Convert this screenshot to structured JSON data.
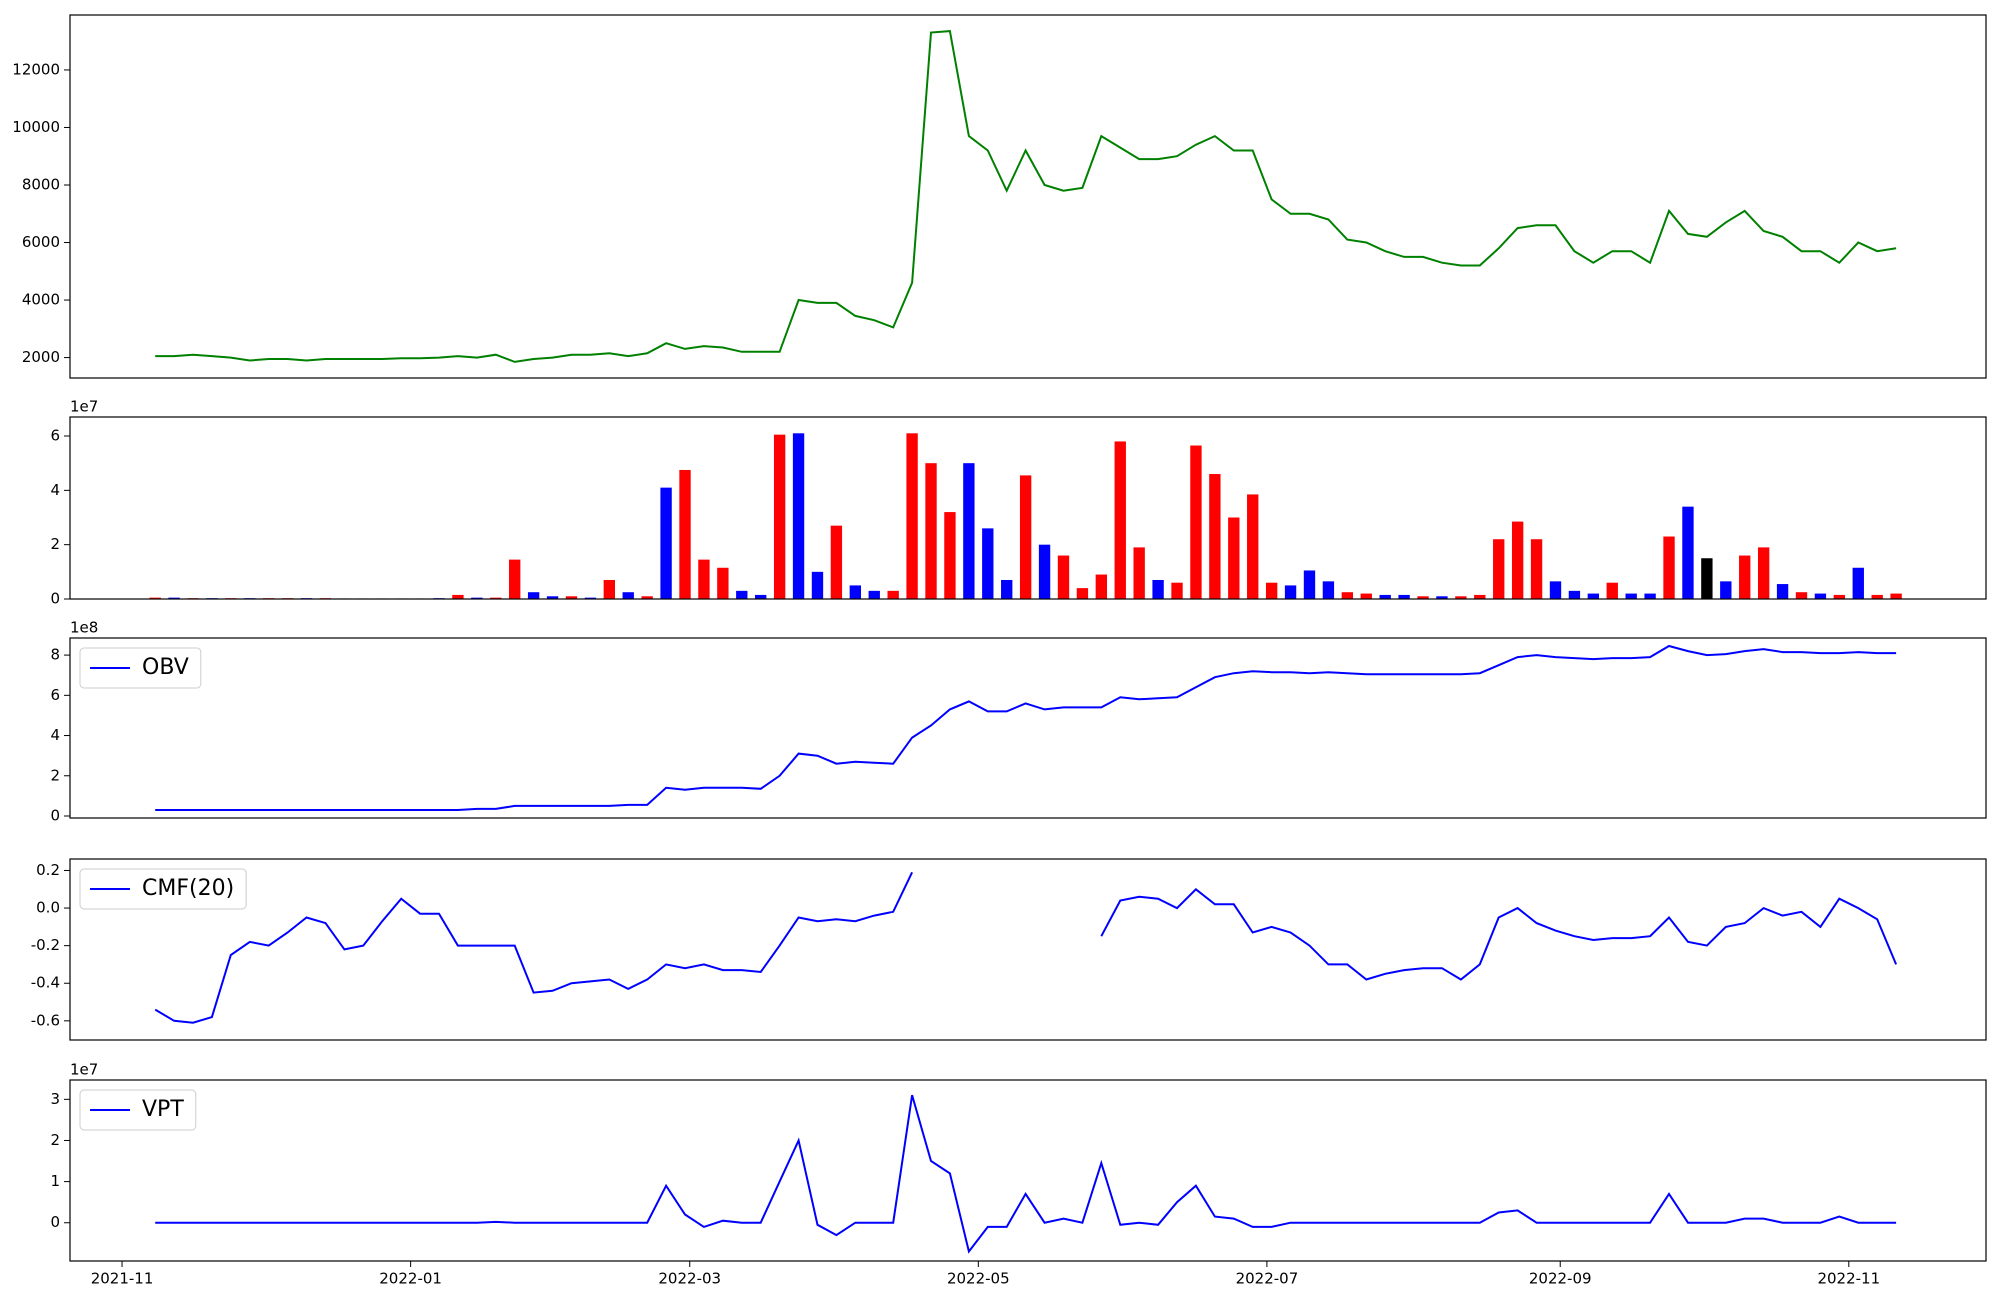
{
  "chart_data": [
    {
      "type": "line",
      "color": "green",
      "x": [
        7,
        11,
        15,
        19,
        23,
        27,
        31,
        35,
        39,
        43,
        47,
        51,
        55,
        59,
        63,
        67,
        71,
        75,
        79,
        83,
        87,
        91,
        95,
        99,
        103,
        107,
        111,
        115,
        119,
        123,
        127,
        131,
        135,
        139,
        143,
        147,
        151,
        155,
        159,
        163,
        167,
        171,
        175,
        179,
        183,
        187,
        191,
        195,
        199,
        203,
        207,
        211,
        215,
        219,
        223,
        227,
        231,
        235,
        239,
        243,
        247,
        251,
        255,
        259,
        263,
        267,
        271,
        275,
        279,
        283,
        287,
        291,
        295,
        299,
        303,
        307,
        311,
        315,
        319,
        323,
        327,
        331,
        335,
        339,
        343,
        347,
        351,
        355,
        359,
        363,
        367,
        371,
        375
      ],
      "values": [
        2050,
        2050,
        2100,
        2050,
        2000,
        1900,
        1950,
        1950,
        1900,
        1950,
        1950,
        1950,
        1950,
        1980,
        1980,
        2000,
        2050,
        2000,
        2100,
        1850,
        1950,
        2000,
        2100,
        2100,
        2150,
        2050,
        2150,
        2500,
        2300,
        2400,
        2350,
        2200,
        2200,
        2200,
        4000,
        3900,
        3900,
        3450,
        3300,
        3050,
        4600,
        13300,
        13350,
        9700,
        9200,
        7800,
        9200,
        8000,
        7800,
        7900,
        9700,
        9300,
        8900,
        8900,
        9000,
        9400,
        9700,
        9200,
        9200,
        7500,
        7000,
        7000,
        6800,
        6100,
        6000,
        5700,
        5500,
        5500,
        5300,
        5200,
        5200,
        5800,
        6500,
        6600,
        6600,
        5700,
        5300,
        5700,
        5700,
        5300,
        7100,
        6300,
        6200,
        6700,
        7100,
        6400,
        6200,
        5700,
        5700,
        5300,
        6000,
        5700,
        5800
      ],
      "xlim": [
        -11,
        394
      ],
      "ylim": [
        1290,
        13910
      ],
      "yticks": [
        2000,
        4000,
        6000,
        8000,
        10000,
        12000
      ]
    },
    {
      "type": "bar",
      "y_offset_label": "1e7",
      "x": [
        7,
        11,
        15,
        19,
        23,
        27,
        31,
        35,
        39,
        43,
        47,
        51,
        55,
        59,
        63,
        67,
        71,
        75,
        79,
        83,
        87,
        91,
        95,
        99,
        103,
        107,
        111,
        115,
        119,
        123,
        127,
        131,
        135,
        139,
        143,
        147,
        151,
        155,
        159,
        163,
        167,
        171,
        175,
        179,
        183,
        187,
        191,
        195,
        199,
        203,
        207,
        211,
        215,
        219,
        223,
        227,
        231,
        235,
        239,
        243,
        247,
        251,
        255,
        259,
        263,
        267,
        271,
        275,
        279,
        283,
        287,
        291,
        295,
        299,
        303,
        307,
        311,
        315,
        319,
        323,
        327,
        331,
        335,
        339,
        343,
        347,
        351,
        355,
        359,
        363,
        367,
        371,
        375
      ],
      "values": [
        500000.0,
        500000.0,
        300000.0,
        300000.0,
        300000.0,
        300000.0,
        300000.0,
        300000.0,
        300000.0,
        300000.0,
        200000.0,
        200000.0,
        200000.0,
        200000.0,
        200000.0,
        300000.0,
        1500000.0,
        500000.0,
        500000.0,
        14500000.0,
        2500000.0,
        1000000.0,
        1000000.0,
        500000.0,
        7000000.0,
        2500000.0,
        1000000.0,
        41000000.0,
        47500000.0,
        14500000.0,
        11500000.0,
        3000000.0,
        1500000.0,
        60500000.0,
        61000000.0,
        10000000.0,
        27000000.0,
        5000000.0,
        3000000.0,
        3000000.0,
        61000000.0,
        50000000.0,
        32000000.0,
        50000000.0,
        26000000.0,
        7000000.0,
        45500000.0,
        20000000.0,
        16000000.0,
        4000000.0,
        9000000.0,
        58000000.0,
        19000000.0,
        7000000.0,
        6000000.0,
        56500000.0,
        46000000.0,
        30000000.0,
        38500000.0,
        6000000.0,
        5000000.0,
        10500000.0,
        6500000.0,
        2500000.0,
        2000000.0,
        1500000.0,
        1500000.0,
        1000000.0,
        1000000.0,
        1000000.0,
        1500000.0,
        22000000.0,
        28500000.0,
        22000000.0,
        6500000.0,
        3000000.0,
        2000000.0,
        6000000.0,
        2000000.0,
        2000000.0,
        23000000.0,
        34000000.0,
        15000000.0,
        6500000.0,
        16000000.0,
        19000000.0,
        5500000.0,
        2500000.0,
        2000000.0,
        1500000.0,
        11500000.0,
        1500000.0,
        2000000.0
      ],
      "bar_colors": [
        "red",
        "blue",
        "red",
        "blue",
        "red",
        "blue",
        "red",
        "red",
        "blue",
        "red",
        "blue",
        "blue",
        "red",
        "blue",
        "red",
        "blue",
        "red",
        "blue",
        "red",
        "red",
        "blue",
        "blue",
        "red",
        "blue",
        "red",
        "blue",
        "red",
        "blue",
        "red",
        "red",
        "red",
        "blue",
        "blue",
        "red",
        "blue",
        "blue",
        "red",
        "blue",
        "blue",
        "red",
        "red",
        "red",
        "red",
        "blue",
        "blue",
        "blue",
        "red",
        "blue",
        "red",
        "red",
        "red",
        "red",
        "red",
        "blue",
        "red",
        "red",
        "red",
        "red",
        "red",
        "red",
        "blue",
        "blue",
        "blue",
        "red",
        "red",
        "blue",
        "blue",
        "red",
        "blue",
        "red",
        "red",
        "red",
        "red",
        "red",
        "blue",
        "blue",
        "blue",
        "red",
        "blue",
        "blue",
        "red",
        "blue",
        "black",
        "blue",
        "red",
        "red",
        "blue",
        "red",
        "blue",
        "red",
        "blue",
        "red",
        "red"
      ],
      "xlim": [
        -11,
        394
      ],
      "ylim": [
        0,
        67000000.0
      ],
      "yticks": [
        0,
        {
          "value": 20000000.0,
          "label": "2"
        },
        {
          "value": 40000000.0,
          "label": "4"
        },
        {
          "value": 60000000.0,
          "label": "6"
        }
      ]
    },
    {
      "type": "line",
      "y_offset_label": "1e8",
      "legend": "upper left",
      "x": [
        7,
        11,
        15,
        19,
        23,
        27,
        31,
        35,
        39,
        43,
        47,
        51,
        55,
        59,
        63,
        67,
        71,
        75,
        79,
        83,
        87,
        91,
        95,
        99,
        103,
        107,
        111,
        115,
        119,
        123,
        127,
        131,
        135,
        139,
        143,
        147,
        151,
        155,
        159,
        163,
        167,
        171,
        175,
        179,
        183,
        187,
        191,
        195,
        199,
        203,
        207,
        211,
        215,
        219,
        223,
        227,
        231,
        235,
        239,
        243,
        247,
        251,
        255,
        259,
        263,
        267,
        271,
        275,
        279,
        283,
        287,
        291,
        295,
        299,
        303,
        307,
        311,
        315,
        319,
        323,
        327,
        331,
        335,
        339,
        343,
        347,
        351,
        355,
        359,
        363,
        367,
        371,
        375
      ],
      "series": [
        {
          "name": "OBV",
          "color": "blue",
          "values": [
            30000000.0,
            30000000.0,
            30000000.0,
            30000000.0,
            30000000.0,
            30000000.0,
            30000000.0,
            30000000.0,
            30000000.0,
            30000000.0,
            30000000.0,
            30000000.0,
            30000000.0,
            30000000.0,
            30000000.0,
            30000000.0,
            30000000.0,
            35000000.0,
            35000000.0,
            50000000.0,
            50000000.0,
            50000000.0,
            50000000.0,
            50000000.0,
            50000000.0,
            55000000.0,
            55000000.0,
            140000000.0,
            130000000.0,
            140000000.0,
            140000000.0,
            140000000.0,
            135000000.0,
            200000000.0,
            310000000.0,
            300000000.0,
            260000000.0,
            270000000.0,
            265000000.0,
            260000000.0,
            390000000.0,
            450000000.0,
            530000000.0,
            570000000.0,
            520000000.0,
            520000000.0,
            560000000.0,
            530000000.0,
            540000000.0,
            540000000.0,
            540000000.0,
            590000000.0,
            580000000.0,
            585000000.0,
            590000000.0,
            640000000.0,
            690000000.0,
            710000000.0,
            720000000.0,
            715000000.0,
            715000000.0,
            710000000.0,
            715000000.0,
            710000000.0,
            705000000.0,
            705000000.0,
            705000000.0,
            705000000.0,
            705000000.0,
            705000000.0,
            710000000.0,
            750000000.0,
            790000000.0,
            800000000.0,
            790000000.0,
            785000000.0,
            780000000.0,
            785000000.0,
            785000000.0,
            790000000.0,
            845000000.0,
            820000000.0,
            800000000.0,
            805000000.0,
            820000000.0,
            830000000.0,
            815000000.0,
            815000000.0,
            810000000.0,
            810000000.0,
            815000000.0,
            810000000.0,
            810000000.0
          ]
        }
      ],
      "xlim": [
        -11,
        394
      ],
      "ylim": [
        -10000000.0,
        885000000.0
      ],
      "yticks": [
        0,
        {
          "value": 200000000.0,
          "label": "2"
        },
        {
          "value": 400000000.0,
          "label": "4"
        },
        {
          "value": 600000000.0,
          "label": "6"
        },
        {
          "value": 800000000.0,
          "label": "8"
        }
      ]
    },
    {
      "type": "line",
      "legend": "upper left",
      "x": [
        7,
        11,
        15,
        19,
        23,
        27,
        31,
        35,
        39,
        43,
        47,
        51,
        55,
        59,
        63,
        67,
        71,
        75,
        79,
        83,
        87,
        91,
        95,
        99,
        103,
        107,
        111,
        115,
        119,
        123,
        127,
        131,
        135,
        139,
        143,
        147,
        151,
        155,
        159,
        163,
        167,
        171,
        175,
        179,
        183,
        187,
        191,
        195,
        199,
        203,
        207,
        211,
        215,
        219,
        223,
        227,
        231,
        235,
        239,
        243,
        247,
        251,
        255,
        259,
        263,
        267,
        271,
        275,
        279,
        283,
        287,
        291,
        295,
        299,
        303,
        307,
        311,
        315,
        319,
        323,
        327,
        331,
        335,
        339,
        343,
        347,
        351,
        355,
        359,
        363,
        367,
        371,
        375
      ],
      "series": [
        {
          "name": "CMF(20)",
          "color": "blue",
          "values": [
            -0.54,
            -0.6,
            -0.61,
            -0.58,
            -0.25,
            -0.18,
            -0.2,
            -0.13,
            -0.05,
            -0.08,
            -0.22,
            -0.2,
            -0.07,
            0.05,
            -0.03,
            -0.03,
            -0.2,
            -0.2,
            -0.2,
            -0.2,
            -0.45,
            -0.44,
            -0.4,
            -0.39,
            -0.38,
            -0.43,
            -0.38,
            -0.3,
            -0.32,
            -0.3,
            -0.33,
            -0.33,
            -0.34,
            -0.2,
            -0.05,
            -0.07,
            -0.06,
            -0.07,
            -0.04,
            -0.02,
            0.19,
            null,
            null,
            null,
            null,
            null,
            null,
            null,
            null,
            null,
            -0.15,
            0.04,
            0.06,
            0.05,
            0.0,
            0.1,
            0.02,
            0.02,
            -0.13,
            -0.1,
            -0.13,
            -0.2,
            -0.3,
            -0.3,
            -0.38,
            -0.35,
            -0.33,
            -0.32,
            -0.32,
            -0.38,
            -0.3,
            -0.05,
            0.0,
            -0.08,
            -0.12,
            -0.15,
            -0.17,
            -0.16,
            -0.16,
            -0.15,
            -0.05,
            -0.18,
            -0.2,
            -0.1,
            -0.08,
            0.0,
            -0.04,
            -0.02,
            -0.1,
            0.05,
            0.0,
            -0.06,
            -0.3
          ]
        }
      ],
      "xlim": [
        -11,
        394
      ],
      "ylim": [
        -0.702,
        0.261
      ],
      "yticks": [
        -0.6,
        -0.4,
        -0.2,
        {
          "value": 0,
          "label": "0.0"
        },
        0.2
      ]
    },
    {
      "type": "line",
      "y_offset_label": "1e7",
      "legend": "upper left",
      "x": [
        7,
        11,
        15,
        19,
        23,
        27,
        31,
        35,
        39,
        43,
        47,
        51,
        55,
        59,
        63,
        67,
        71,
        75,
        79,
        83,
        87,
        91,
        95,
        99,
        103,
        107,
        111,
        115,
        119,
        123,
        127,
        131,
        135,
        139,
        143,
        147,
        151,
        155,
        159,
        163,
        167,
        171,
        175,
        179,
        183,
        187,
        191,
        195,
        199,
        203,
        207,
        211,
        215,
        219,
        223,
        227,
        231,
        235,
        239,
        243,
        247,
        251,
        255,
        259,
        263,
        267,
        271,
        275,
        279,
        283,
        287,
        291,
        295,
        299,
        303,
        307,
        311,
        315,
        319,
        323,
        327,
        331,
        335,
        339,
        343,
        347,
        351,
        355,
        359,
        363,
        367,
        371,
        375
      ],
      "series": [
        {
          "name": "VPT",
          "color": "blue",
          "values": [
            0,
            0,
            0,
            0,
            0,
            0,
            0,
            0,
            0,
            0,
            0,
            0,
            0,
            0,
            0,
            0,
            0,
            0,
            200000.0,
            0,
            0,
            0,
            0,
            0,
            0,
            0,
            0,
            9000000.0,
            2000000.0,
            -1000000.0,
            500000.0,
            0,
            0,
            10000000.0,
            20000000.0,
            -500000.0,
            -3000000.0,
            0,
            0,
            0,
            31000000.0,
            15000000.0,
            12000000.0,
            -7000000.0,
            -1000000.0,
            -1000000.0,
            7000000.0,
            0,
            1000000.0,
            0,
            14500000.0,
            -500000.0,
            0,
            -500000.0,
            5000000.0,
            9000000.0,
            1500000.0,
            1000000.0,
            -1000000.0,
            -1000000.0,
            0,
            0,
            0,
            0,
            0,
            0,
            0,
            0,
            0,
            0,
            0,
            2500000.0,
            3000000.0,
            0,
            0,
            0,
            0,
            0,
            0,
            0,
            7000000.0,
            0,
            0,
            0,
            1000000.0,
            1000000.0,
            0,
            0,
            0,
            1500000.0,
            0,
            0,
            0
          ]
        }
      ],
      "xlim": [
        -11,
        394
      ],
      "ylim": [
        -9300000.0,
        34700000.0
      ],
      "yticks": [
        0,
        {
          "value": 10000000.0,
          "label": "1"
        },
        {
          "value": 20000000.0,
          "label": "2"
        },
        {
          "value": 30000000.0,
          "label": "3"
        }
      ],
      "xticks": [
        {
          "value": 0,
          "label": "2021-11"
        },
        {
          "value": 61,
          "label": "2022-01"
        },
        {
          "value": 120,
          "label": "2022-03"
        },
        {
          "value": 181,
          "label": "2022-05"
        },
        {
          "value": 242,
          "label": "2022-07"
        },
        {
          "value": 304,
          "label": "2022-09"
        },
        {
          "value": 365,
          "label": "2022-11"
        }
      ]
    }
  ]
}
